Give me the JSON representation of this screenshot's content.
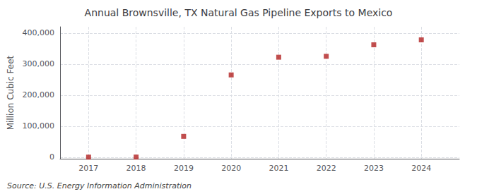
{
  "chart_data": {
    "type": "scatter",
    "title": "Annual Brownsville, TX Natural Gas Pipeline Exports to Mexico",
    "y_label": "Million Cubic Feet",
    "annotations": [
      "Source: U.S. Energy Information Administration"
    ],
    "x": [
      2017,
      2018,
      2019,
      2020,
      2021,
      2022,
      2023,
      2024
    ],
    "values": [
      200,
      400,
      67000,
      265000,
      322000,
      325000,
      362000,
      378000
    ],
    "color": "#b22222",
    "marker": "square",
    "xlim": [
      2016.4,
      2024.8
    ],
    "xticks": [
      2017,
      2018,
      2019,
      2020,
      2021,
      2022,
      2023,
      2024
    ],
    "ylim": [
      -5000,
      420000
    ],
    "yticks": [
      0,
      {
        "value": 100000,
        "label": "100,000"
      },
      {
        "value": 200000,
        "label": "200,000"
      },
      {
        "value": 300000,
        "label": "300,000"
      },
      {
        "value": 400000,
        "label": "400,000"
      }
    ],
    "grid": true
  }
}
